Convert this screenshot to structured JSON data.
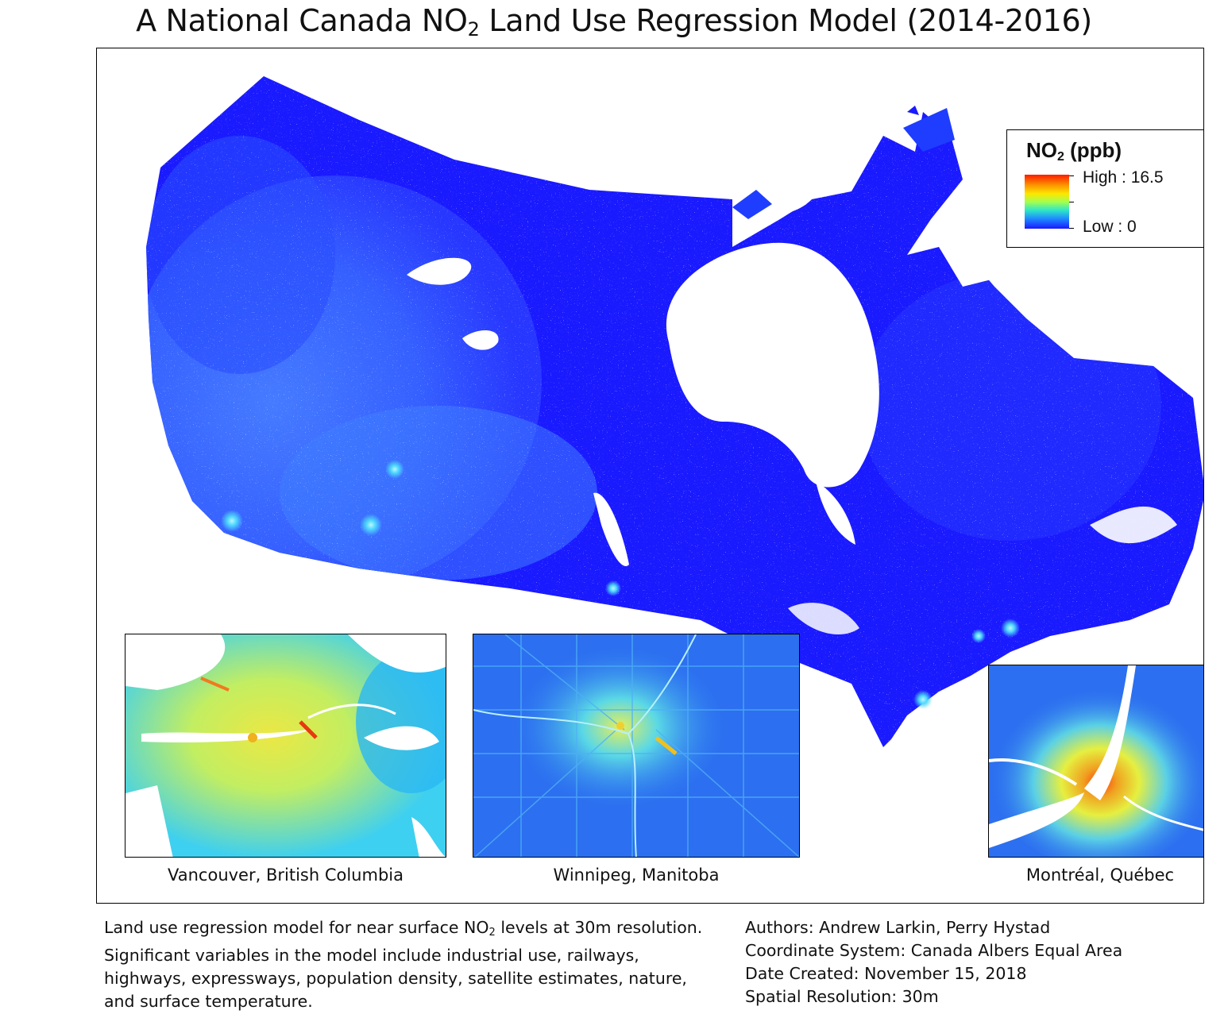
{
  "title": {
    "prefix": "A National Canada NO",
    "sub": "2",
    "suffix": " Land Use Regression Model (2014-2016)"
  },
  "legend": {
    "title_prefix": "NO",
    "title_sub": "2",
    "title_suffix": " (ppb)",
    "high_label": "High : 16.5",
    "low_label": "Low : 0",
    "high_value": 16.5,
    "low_value": 0,
    "colors": [
      "#ff1a00",
      "#ff8c00",
      "#ffe600",
      "#a6ff4d",
      "#2ee6c8",
      "#1e88ff",
      "#1a1aff"
    ]
  },
  "insets": [
    {
      "id": "vancouver",
      "label": "Vancouver, British Columbia"
    },
    {
      "id": "winnipeg",
      "label": "Winnipeg, Manitoba"
    },
    {
      "id": "montreal",
      "label": "Montréal, Québec"
    }
  ],
  "description": {
    "line1_prefix": "Land use regression model for near surface NO",
    "line1_sub": "2",
    "line1_suffix": " levels at 30m resolution.",
    "line2": "Significant variables in the model include industrial use, railways,",
    "line3": "highways, expressways, population density, satellite estimates, nature,",
    "line4": "and surface temperature."
  },
  "metadata": {
    "authors": "Authors: Andrew Larkin, Perry Hystad",
    "coordinate_system": "Coordinate System: Canada Albers Equal Area",
    "date_created": "Date Created: November 15, 2018",
    "spatial_resolution": "Spatial Resolution: 30m"
  },
  "colors": {
    "low_blue": "#1a1aff",
    "mid_blue": "#2b60ff",
    "cyan": "#36c9ff",
    "yellow": "#f5f04a",
    "red": "#ff2a00"
  }
}
